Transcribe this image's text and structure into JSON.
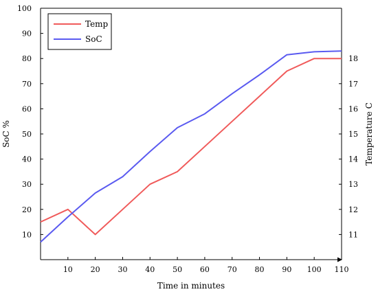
{
  "chart_data": {
    "type": "line",
    "xlabel": "Time in minutes",
    "ylabel_left": "SoC %",
    "ylabel_right": "Temperature C",
    "xlim": [
      0,
      110
    ],
    "ylim_left": [
      0,
      100
    ],
    "ylim_right": [
      10,
      20
    ],
    "x_ticks": [
      10,
      20,
      30,
      40,
      50,
      60,
      70,
      80,
      90,
      100,
      110
    ],
    "y_ticks_left": [
      10,
      20,
      30,
      40,
      50,
      60,
      70,
      80,
      90,
      100
    ],
    "y_ticks_right": [
      11,
      12,
      13,
      14,
      15,
      16,
      17,
      18
    ],
    "legend_position": "top-left",
    "grid": false,
    "series": [
      {
        "name": "Temp",
        "axis": "right",
        "color": "#f05a5a",
        "x": [
          0,
          10,
          20,
          30,
          40,
          50,
          60,
          70,
          80,
          90,
          100,
          110
        ],
        "y": [
          11.5,
          12.0,
          11.0,
          12.0,
          13.0,
          13.5,
          14.5,
          15.5,
          16.5,
          17.5,
          18.0,
          18.0
        ]
      },
      {
        "name": "SoC",
        "axis": "left",
        "color": "#5a5af0",
        "x": [
          0,
          10,
          20,
          30,
          40,
          50,
          60,
          70,
          80,
          90,
          100,
          110
        ],
        "y": [
          7,
          17,
          26.5,
          33,
          43,
          52.5,
          58,
          66,
          73.5,
          81.5,
          82.7,
          83
        ]
      }
    ]
  }
}
